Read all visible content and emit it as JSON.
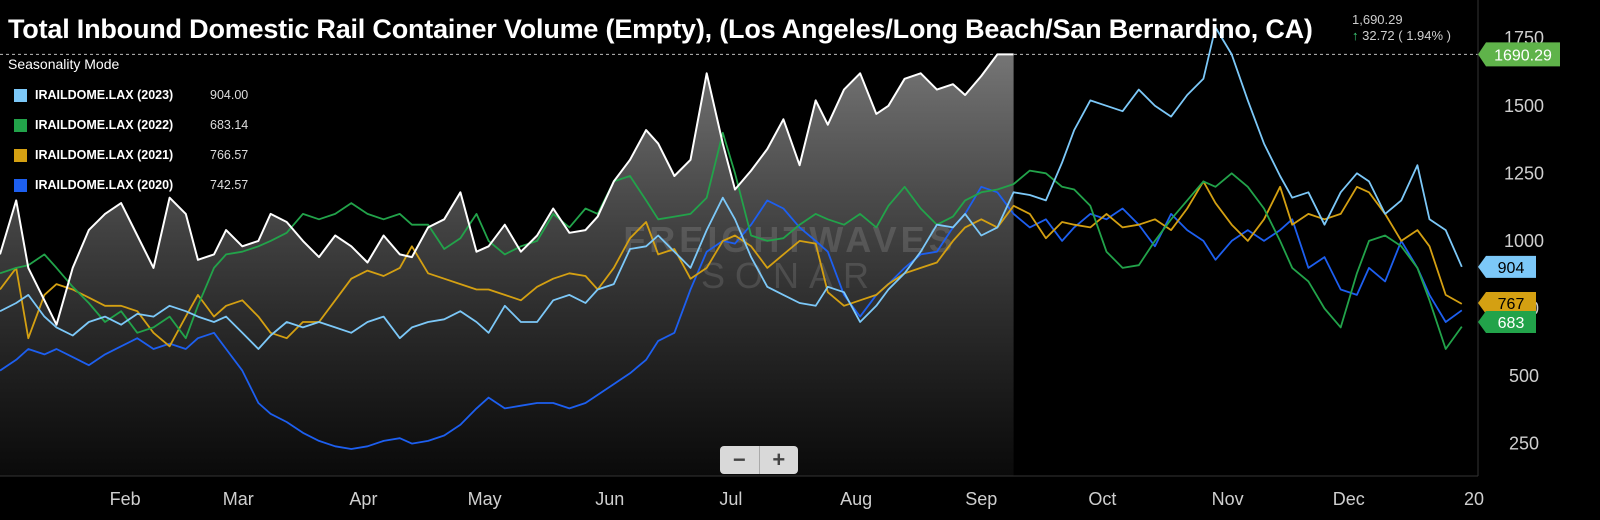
{
  "title": "Total Inbound Domestic Rail Container Volume (Empty), (Los Angeles/Long Beach/San Bernardino, CA)",
  "quote": {
    "last": "1,690.29",
    "change": "32.72 ( 1.94% )",
    "arrow": "↑"
  },
  "legend": {
    "title": "Seasonality Mode",
    "items": [
      {
        "name": "IRAILDOME.LAX (2023)",
        "value": "904.00",
        "color": "#7cc8f8"
      },
      {
        "name": "IRAILDOME.LAX (2022)",
        "value": "683.14",
        "color": "#22a34a"
      },
      {
        "name": "IRAILDOME.LAX (2021)",
        "value": "766.57",
        "color": "#d4a012"
      },
      {
        "name": "IRAILDOME.LAX (2020)",
        "value": "742.57",
        "color": "#1d5ff0"
      }
    ]
  },
  "watermark": [
    "FREIGHTWAVES",
    "SONAR"
  ],
  "zoom": {
    "minus": "−",
    "plus": "+"
  },
  "chart_data": {
    "type": "line",
    "ylim": [
      130,
      1810
    ],
    "yticks": [
      250,
      500,
      750,
      1000,
      1250,
      1500,
      1750
    ],
    "xticks": [
      "Feb",
      "Mar",
      "Apr",
      "May",
      "Jun",
      "Jul",
      "Aug",
      "Sep",
      "Oct",
      "Nov",
      "Dec",
      "20"
    ],
    "current_label": {
      "value": "1690.29",
      "color": "#5fb34a"
    },
    "series": [
      {
        "name": "Current",
        "color": "#ffffff",
        "area": true,
        "x": [
          "Jan 1",
          "Jan 5",
          "Jan 8",
          "Jan 12",
          "Jan 15",
          "Jan 19",
          "Jan 23",
          "Jan 27",
          "Jan 31",
          "Feb 4",
          "Feb 8",
          "Feb 12",
          "Feb 16",
          "Feb 19",
          "Feb 23",
          "Feb 26",
          "Mar 2",
          "Mar 6",
          "Mar 9",
          "Mar 13",
          "Mar 17",
          "Mar 21",
          "Mar 25",
          "Mar 29",
          "Apr 2",
          "Apr 6",
          "Apr 10",
          "Apr 13",
          "Apr 17",
          "Apr 21",
          "Apr 25",
          "Apr 29",
          "May 2",
          "May 6",
          "May 10",
          "May 14",
          "May 18",
          "May 22",
          "May 26",
          "May 29",
          "Jun 2",
          "Jun 6",
          "Jun 10",
          "Jun 13",
          "Jun 17",
          "Jun 21",
          "Jun 25",
          "Jun 29",
          "Jul 2",
          "Jul 6",
          "Jul 10",
          "Jul 14",
          "Jul 18",
          "Jul 22",
          "Jul 25",
          "Jul 29",
          "Aug 2",
          "Aug 6",
          "Aug 9",
          "Aug 13",
          "Aug 17",
          "Aug 21",
          "Aug 25",
          "Aug 28",
          "Sep 1",
          "Sep 5",
          "Sep 9"
        ],
        "y": [
          950,
          1150,
          900,
          780,
          690,
          900,
          1040,
          1100,
          1140,
          1020,
          900,
          1160,
          1100,
          930,
          950,
          1040,
          980,
          1000,
          1100,
          1070,
          1000,
          940,
          1020,
          980,
          920,
          1020,
          950,
          940,
          1050,
          1080,
          1180,
          960,
          980,
          1060,
          960,
          1020,
          1120,
          1030,
          1040,
          1090,
          1220,
          1300,
          1410,
          1360,
          1240,
          1300,
          1620,
          1360,
          1190,
          1260,
          1340,
          1450,
          1280,
          1520,
          1430,
          1560,
          1620,
          1470,
          1500,
          1600,
          1620,
          1560,
          1580,
          1540,
          1610,
          1690,
          1690
        ]
      },
      {
        "name": "IRAILDOME.LAX (2023)",
        "color": "#7cc8f8",
        "x": [
          "Jan 1",
          "Jan 5",
          "Jan 8",
          "Jan 12",
          "Jan 15",
          "Jan 19",
          "Jan 23",
          "Jan 27",
          "Jan 31",
          "Feb 4",
          "Feb 8",
          "Feb 12",
          "Feb 16",
          "Feb 19",
          "Feb 23",
          "Feb 26",
          "Mar 2",
          "Mar 6",
          "Mar 9",
          "Mar 13",
          "Mar 17",
          "Mar 21",
          "Mar 25",
          "Mar 29",
          "Apr 2",
          "Apr 6",
          "Apr 10",
          "Apr 13",
          "Apr 17",
          "Apr 21",
          "Apr 25",
          "Apr 29",
          "May 2",
          "May 6",
          "May 10",
          "May 14",
          "May 18",
          "May 22",
          "May 26",
          "May 29",
          "Jun 2",
          "Jun 6",
          "Jun 10",
          "Jun 13",
          "Jun 17",
          "Jun 21",
          "Jun 25",
          "Jun 29",
          "Jul 2",
          "Jul 6",
          "Jul 10",
          "Jul 14",
          "Jul 18",
          "Jul 22",
          "Jul 25",
          "Jul 29",
          "Aug 2",
          "Aug 6",
          "Aug 9",
          "Aug 13",
          "Aug 17",
          "Aug 21",
          "Aug 25",
          "Aug 28",
          "Sep 1",
          "Sep 5",
          "Sep 9",
          "Sep 13",
          "Sep 17",
          "Sep 21",
          "Sep 24",
          "Sep 28",
          "Oct 2",
          "Oct 6",
          "Oct 10",
          "Oct 14",
          "Oct 18",
          "Oct 22",
          "Oct 26",
          "Oct 29",
          "Nov 2",
          "Nov 6",
          "Nov 10",
          "Nov 14",
          "Nov 17",
          "Nov 21",
          "Nov 25",
          "Nov 29",
          "Dec 3",
          "Dec 6",
          "Dec 10",
          "Dec 14",
          "Dec 18",
          "Dec 21",
          "Dec 25",
          "Dec 29"
        ],
        "y": [
          740,
          770,
          800,
          720,
          680,
          650,
          700,
          720,
          690,
          730,
          720,
          760,
          740,
          720,
          700,
          720,
          660,
          600,
          650,
          700,
          680,
          700,
          680,
          660,
          700,
          720,
          640,
          680,
          700,
          710,
          740,
          700,
          660,
          760,
          700,
          700,
          780,
          800,
          770,
          820,
          840,
          970,
          980,
          1020,
          960,
          900,
          1040,
          1160,
          1080,
          940,
          830,
          800,
          770,
          760,
          830,
          810,
          700,
          760,
          820,
          880,
          960,
          1060,
          1050,
          1100,
          1020,
          1050,
          1180,
          1170,
          1150,
          1290,
          1410,
          1520,
          1500,
          1480,
          1560,
          1500,
          1460,
          1540,
          1600,
          1790,
          1690,
          1520,
          1360,
          1240,
          1160,
          1180,
          1060,
          1180,
          1250,
          1220,
          1100,
          1150,
          1280,
          1080,
          1040,
          904
        ]
      },
      {
        "name": "IRAILDOME.LAX (2022)",
        "color": "#22a34a",
        "x": [
          "Jan 1",
          "Jan 5",
          "Jan 8",
          "Jan 12",
          "Jan 15",
          "Jan 19",
          "Jan 23",
          "Jan 27",
          "Jan 31",
          "Feb 4",
          "Feb 8",
          "Feb 12",
          "Feb 16",
          "Feb 19",
          "Feb 23",
          "Feb 26",
          "Mar 2",
          "Mar 6",
          "Mar 9",
          "Mar 13",
          "Mar 17",
          "Mar 21",
          "Mar 25",
          "Mar 29",
          "Apr 2",
          "Apr 6",
          "Apr 10",
          "Apr 13",
          "Apr 17",
          "Apr 21",
          "Apr 25",
          "Apr 29",
          "May 2",
          "May 6",
          "May 10",
          "May 14",
          "May 18",
          "May 22",
          "May 26",
          "May 29",
          "Jun 2",
          "Jun 6",
          "Jun 10",
          "Jun 13",
          "Jun 17",
          "Jun 21",
          "Jun 25",
          "Jun 29",
          "Jul 2",
          "Jul 6",
          "Jul 10",
          "Jul 14",
          "Jul 18",
          "Jul 22",
          "Jul 25",
          "Jul 29",
          "Aug 2",
          "Aug 6",
          "Aug 9",
          "Aug 13",
          "Aug 17",
          "Aug 21",
          "Aug 25",
          "Aug 28",
          "Sep 1",
          "Sep 5",
          "Sep 9",
          "Sep 13",
          "Sep 17",
          "Sep 21",
          "Sep 24",
          "Sep 28",
          "Oct 2",
          "Oct 6",
          "Oct 10",
          "Oct 14",
          "Oct 18",
          "Oct 22",
          "Oct 26",
          "Oct 29",
          "Nov 2",
          "Nov 6",
          "Nov 10",
          "Nov 14",
          "Nov 17",
          "Nov 21",
          "Nov 25",
          "Nov 29",
          "Dec 3",
          "Dec 6",
          "Dec 10",
          "Dec 14",
          "Dec 18",
          "Dec 21",
          "Dec 25",
          "Dec 29"
        ],
        "y": [
          880,
          900,
          910,
          950,
          900,
          830,
          770,
          700,
          740,
          660,
          680,
          720,
          640,
          760,
          900,
          950,
          960,
          980,
          1000,
          1030,
          1100,
          1080,
          1100,
          1140,
          1100,
          1080,
          1100,
          1060,
          1060,
          970,
          1010,
          1100,
          1000,
          950,
          980,
          1000,
          1100,
          1050,
          1120,
          1100,
          1220,
          1240,
          1150,
          1080,
          1090,
          1100,
          1160,
          1400,
          1250,
          1020,
          1000,
          1010,
          1060,
          1100,
          1080,
          1060,
          1100,
          1050,
          1130,
          1200,
          1120,
          1060,
          1090,
          1150,
          1180,
          1190,
          1210,
          1260,
          1250,
          1200,
          1190,
          1130,
          960,
          900,
          910,
          1000,
          1080,
          1150,
          1220,
          1200,
          1250,
          1200,
          1120,
          1000,
          900,
          850,
          750,
          680,
          880,
          1000,
          1020,
          980,
          900,
          780,
          600,
          683
        ]
      },
      {
        "name": "IRAILDOME.LAX (2021)",
        "color": "#d4a012",
        "x": [
          "Jan 1",
          "Jan 5",
          "Jan 8",
          "Jan 12",
          "Jan 15",
          "Jan 19",
          "Jan 23",
          "Jan 27",
          "Jan 31",
          "Feb 4",
          "Feb 8",
          "Feb 12",
          "Feb 16",
          "Feb 19",
          "Feb 23",
          "Feb 26",
          "Mar 2",
          "Mar 6",
          "Mar 9",
          "Mar 13",
          "Mar 17",
          "Mar 21",
          "Mar 25",
          "Mar 29",
          "Apr 2",
          "Apr 6",
          "Apr 10",
          "Apr 13",
          "Apr 17",
          "Apr 21",
          "Apr 25",
          "Apr 29",
          "May 2",
          "May 6",
          "May 10",
          "May 14",
          "May 18",
          "May 22",
          "May 26",
          "May 29",
          "Jun 2",
          "Jun 6",
          "Jun 10",
          "Jun 13",
          "Jun 17",
          "Jun 21",
          "Jun 25",
          "Jun 29",
          "Jul 2",
          "Jul 6",
          "Jul 10",
          "Jul 14",
          "Jul 18",
          "Jul 22",
          "Jul 25",
          "Jul 29",
          "Aug 2",
          "Aug 6",
          "Aug 9",
          "Aug 13",
          "Aug 17",
          "Aug 21",
          "Aug 25",
          "Aug 28",
          "Sep 1",
          "Sep 5",
          "Sep 9",
          "Sep 13",
          "Sep 17",
          "Sep 21",
          "Sep 24",
          "Sep 28",
          "Oct 2",
          "Oct 6",
          "Oct 10",
          "Oct 14",
          "Oct 18",
          "Oct 22",
          "Oct 26",
          "Oct 29",
          "Nov 2",
          "Nov 6",
          "Nov 10",
          "Nov 14",
          "Nov 17",
          "Nov 21",
          "Nov 25",
          "Nov 29",
          "Dec 3",
          "Dec 6",
          "Dec 10",
          "Dec 14",
          "Dec 18",
          "Dec 21",
          "Dec 25",
          "Dec 29"
        ],
        "y": [
          820,
          900,
          640,
          800,
          840,
          820,
          790,
          760,
          760,
          740,
          660,
          610,
          720,
          800,
          720,
          760,
          780,
          720,
          660,
          640,
          700,
          700,
          780,
          860,
          890,
          870,
          900,
          980,
          880,
          860,
          840,
          820,
          820,
          800,
          780,
          830,
          860,
          880,
          870,
          820,
          900,
          1010,
          1070,
          950,
          970,
          860,
          900,
          1000,
          1020,
          980,
          900,
          950,
          1000,
          990,
          810,
          760,
          780,
          800,
          840,
          880,
          900,
          920,
          1000,
          1050,
          1080,
          1050,
          1130,
          1100,
          1010,
          1070,
          1060,
          1050,
          1100,
          1050,
          1060,
          1080,
          1040,
          1120,
          1220,
          1140,
          1060,
          1000,
          1080,
          1200,
          1060,
          1100,
          1080,
          1100,
          1200,
          1180,
          1100,
          1000,
          1040,
          980,
          800,
          767
        ]
      },
      {
        "name": "IRAILDOME.LAX (2020)",
        "color": "#1d5ff0",
        "x": [
          "Jan 1",
          "Jan 5",
          "Jan 8",
          "Jan 12",
          "Jan 15",
          "Jan 19",
          "Jan 23",
          "Jan 27",
          "Jan 31",
          "Feb 4",
          "Feb 8",
          "Feb 12",
          "Feb 16",
          "Feb 19",
          "Feb 23",
          "Feb 26",
          "Mar 2",
          "Mar 6",
          "Mar 9",
          "Mar 13",
          "Mar 17",
          "Mar 21",
          "Mar 25",
          "Mar 29",
          "Apr 2",
          "Apr 6",
          "Apr 10",
          "Apr 13",
          "Apr 17",
          "Apr 21",
          "Apr 25",
          "Apr 29",
          "May 2",
          "May 6",
          "May 10",
          "May 14",
          "May 18",
          "May 22",
          "May 26",
          "May 29",
          "Jun 2",
          "Jun 6",
          "Jun 10",
          "Jun 13",
          "Jun 17",
          "Jun 21",
          "Jun 25",
          "Jun 29",
          "Jul 2",
          "Jul 6",
          "Jul 10",
          "Jul 14",
          "Jul 18",
          "Jul 22",
          "Jul 25",
          "Jul 29",
          "Aug 2",
          "Aug 6",
          "Aug 9",
          "Aug 13",
          "Aug 17",
          "Aug 21",
          "Aug 25",
          "Aug 28",
          "Sep 1",
          "Sep 5",
          "Sep 9",
          "Sep 13",
          "Sep 17",
          "Sep 21",
          "Sep 24",
          "Sep 28",
          "Oct 2",
          "Oct 6",
          "Oct 10",
          "Oct 14",
          "Oct 18",
          "Oct 22",
          "Oct 26",
          "Oct 29",
          "Nov 2",
          "Nov 6",
          "Nov 10",
          "Nov 14",
          "Nov 17",
          "Nov 21",
          "Nov 25",
          "Nov 29",
          "Dec 3",
          "Dec 6",
          "Dec 10",
          "Dec 14",
          "Dec 18",
          "Dec 21",
          "Dec 25",
          "Dec 29"
        ],
        "y": [
          520,
          560,
          600,
          580,
          600,
          570,
          540,
          580,
          610,
          640,
          600,
          620,
          600,
          640,
          660,
          600,
          520,
          400,
          360,
          330,
          290,
          260,
          240,
          230,
          240,
          260,
          270,
          250,
          260,
          280,
          320,
          380,
          420,
          380,
          390,
          400,
          400,
          380,
          400,
          430,
          470,
          510,
          560,
          630,
          660,
          820,
          960,
          1000,
          990,
          1060,
          1150,
          1120,
          1050,
          1000,
          960,
          800,
          720,
          800,
          840,
          900,
          950,
          960,
          1050,
          1100,
          1200,
          1180,
          1100,
          1050,
          1080,
          1000,
          1050,
          1100,
          1080,
          1120,
          1060,
          980,
          1100,
          1040,
          1000,
          930,
          1000,
          1040,
          1000,
          1040,
          1080,
          900,
          940,
          820,
          800,
          900,
          850,
          1000,
          900,
          800,
          700,
          743
        ]
      }
    ]
  }
}
